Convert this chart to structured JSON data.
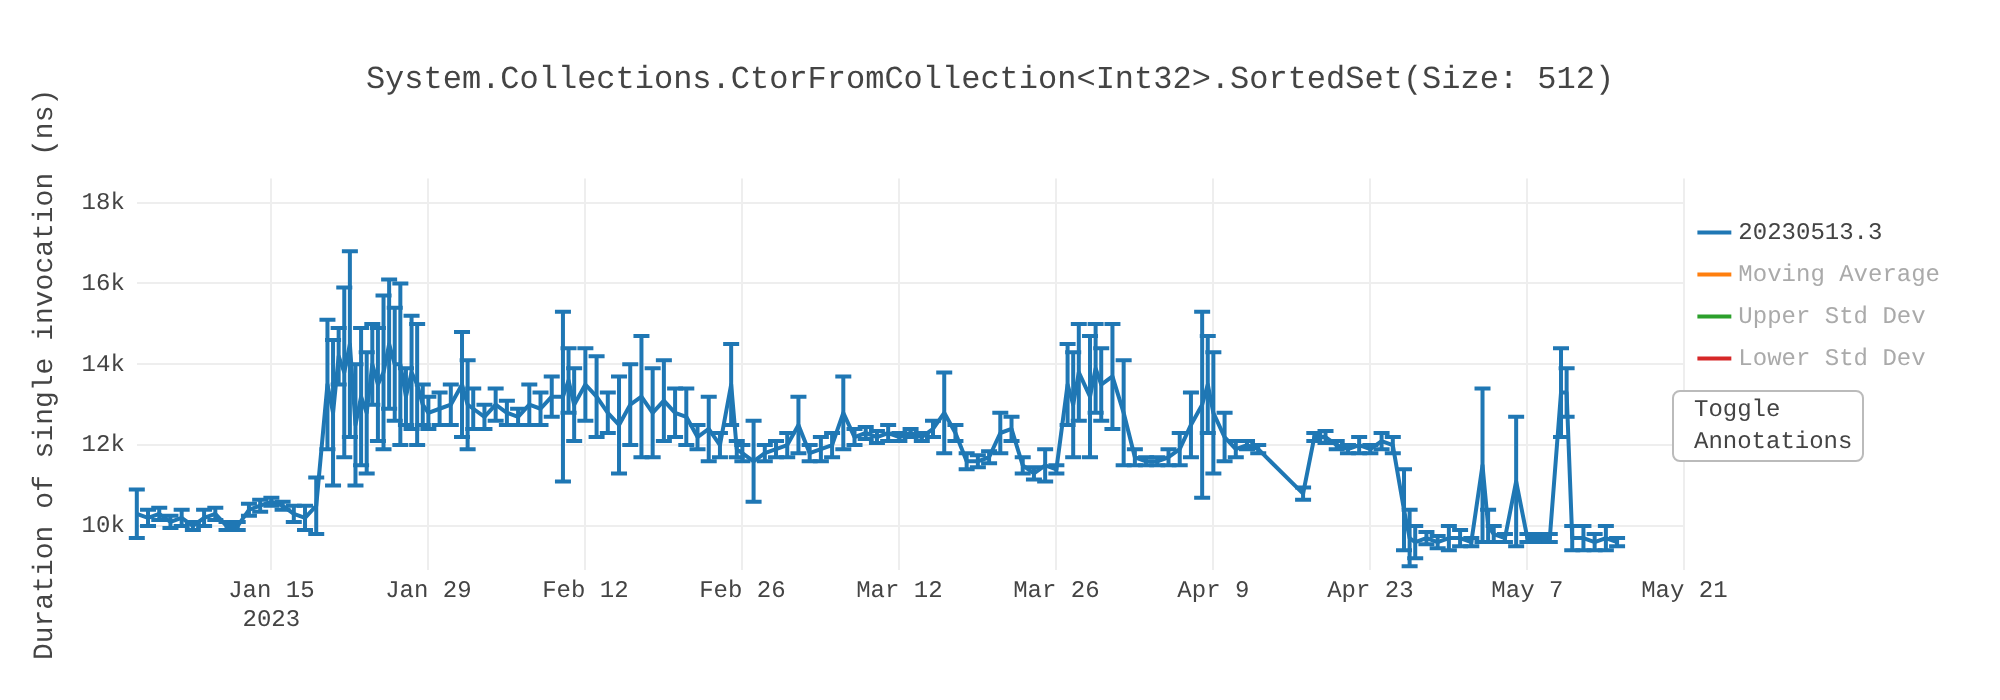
{
  "chart_data": {
    "type": "line",
    "title": "System.Collections.CtorFromCollection<Int32>.SortedSet(Size: 512)",
    "ylabel": "Duration of single invocation (ns)",
    "annotations": [
      "Toggle Annotations"
    ],
    "x": [
      "2023-01-03",
      "2023-01-04",
      "2023-01-05",
      "2023-01-06",
      "2023-01-07",
      "2023-01-08",
      "2023-01-09",
      "2023-01-10",
      "2023-01-11",
      "2023-01-12",
      "2023-01-13",
      "2023-01-14",
      "2023-01-15",
      "2023-01-16",
      "2023-01-17",
      "2023-01-18",
      "2023-01-19",
      "2023-01-20",
      "2023-01-20T12:00",
      "2023-01-21",
      "2023-01-21T12:00",
      "2023-01-22",
      "2023-01-22T12:00",
      "2023-01-23",
      "2023-01-23T12:00",
      "2023-01-24",
      "2023-01-24T12:00",
      "2023-01-25",
      "2023-01-25T12:00",
      "2023-01-26",
      "2023-01-26T12:00",
      "2023-01-27",
      "2023-01-27T12:00",
      "2023-01-28",
      "2023-01-28T12:00",
      "2023-01-29",
      "2023-01-30",
      "2023-01-31",
      "2023-02-01",
      "2023-02-01T12:00",
      "2023-02-02",
      "2023-02-03",
      "2023-02-04",
      "2023-02-05",
      "2023-02-06",
      "2023-02-07",
      "2023-02-08",
      "2023-02-09",
      "2023-02-10",
      "2023-02-10T12:00",
      "2023-02-11",
      "2023-02-12",
      "2023-02-13",
      "2023-02-14",
      "2023-02-15",
      "2023-02-16",
      "2023-02-17",
      "2023-02-18",
      "2023-02-19",
      "2023-02-20",
      "2023-02-21",
      "2023-02-22",
      "2023-02-23",
      "2023-02-24",
      "2023-02-25",
      "2023-02-25T12:00",
      "2023-02-26",
      "2023-02-27",
      "2023-02-28",
      "2023-03-01",
      "2023-03-02",
      "2023-03-03",
      "2023-03-04",
      "2023-03-05",
      "2023-03-06",
      "2023-03-07",
      "2023-03-08",
      "2023-03-09",
      "2023-03-10",
      "2023-03-11",
      "2023-03-12",
      "2023-03-13",
      "2023-03-14",
      "2023-03-15",
      "2023-03-16",
      "2023-03-17",
      "2023-03-18",
      "2023-03-19",
      "2023-03-20",
      "2023-03-21",
      "2023-03-22",
      "2023-03-23",
      "2023-03-24",
      "2023-03-25",
      "2023-03-26",
      "2023-03-27",
      "2023-03-27T12:00",
      "2023-03-28",
      "2023-03-29",
      "2023-03-29T12:00",
      "2023-03-30",
      "2023-03-31",
      "2023-04-01",
      "2023-04-02",
      "2023-04-03",
      "2023-04-04",
      "2023-04-05",
      "2023-04-06",
      "2023-04-07",
      "2023-04-08",
      "2023-04-08T12:00",
      "2023-04-09",
      "2023-04-10",
      "2023-04-11",
      "2023-04-12",
      "2023-04-13",
      "2023-04-17",
      "2023-04-18",
      "2023-04-19",
      "2023-04-20",
      "2023-04-21",
      "2023-04-22",
      "2023-04-23",
      "2023-04-24",
      "2023-04-25",
      "2023-04-26",
      "2023-04-26T12:00",
      "2023-04-27",
      "2023-04-28",
      "2023-04-29",
      "2023-04-30",
      "2023-05-01",
      "2023-05-02",
      "2023-05-03",
      "2023-05-03T12:00",
      "2023-05-04",
      "2023-05-05",
      "2023-05-06",
      "2023-05-07",
      "2023-05-08",
      "2023-05-09",
      "2023-05-10",
      "2023-05-10T12:00",
      "2023-05-11",
      "2023-05-12",
      "2023-05-13",
      "2023-05-14",
      "2023-05-15"
    ],
    "series": [
      {
        "name": "20230513.3",
        "color": "#1f77b4",
        "values": [
          10300,
          10200,
          10300,
          10100,
          10200,
          10000,
          10200,
          10300,
          10000,
          10000,
          10400,
          10500,
          10600,
          10500,
          10300,
          10200,
          10500,
          13500,
          12800,
          14200,
          13800,
          14500,
          12500,
          13200,
          12800,
          14000,
          13500,
          13800,
          14500,
          14000,
          14000,
          13200,
          13800,
          13500,
          13000,
          12800,
          12900,
          13000,
          13500,
          13000,
          12900,
          12700,
          13000,
          12800,
          12700,
          13000,
          12900,
          13200,
          13200,
          13600,
          13000,
          13500,
          13200,
          12800,
          12500,
          13000,
          13200,
          12800,
          13100,
          12800,
          12700,
          12200,
          12400,
          12000,
          13500,
          11900,
          11800,
          11600,
          11800,
          11900,
          12000,
          12500,
          11800,
          11900,
          12000,
          12800,
          12200,
          12300,
          12200,
          12300,
          12200,
          12300,
          12200,
          12400,
          12800,
          12300,
          11600,
          11600,
          11700,
          12300,
          12400,
          11500,
          11300,
          11500,
          11400,
          13500,
          13000,
          13800,
          13200,
          13900,
          13500,
          13700,
          12800,
          11700,
          11600,
          11600,
          11700,
          11900,
          12500,
          13000,
          13500,
          12800,
          12200,
          11900,
          12000,
          11900,
          10800,
          12200,
          12200,
          12000,
          11900,
          12000,
          11900,
          12100,
          12000,
          10400,
          9700,
          9600,
          9700,
          9600,
          9700,
          9700,
          9600,
          11500,
          10000,
          9800,
          9700,
          11100,
          9700,
          9700,
          9700,
          13300,
          13300,
          9700,
          9700,
          9600,
          9700,
          9600
        ],
        "errors": [
          600,
          200,
          150,
          150,
          200,
          100,
          200,
          150,
          100,
          100,
          150,
          150,
          100,
          100,
          200,
          300,
          700,
          1600,
          1800,
          700,
          2100,
          2300,
          1500,
          1700,
          1500,
          1000,
          1400,
          1900,
          1600,
          1400,
          2000,
          700,
          1400,
          1500,
          500,
          400,
          400,
          500,
          1300,
          1100,
          500,
          300,
          400,
          300,
          200,
          500,
          400,
          500,
          2100,
          800,
          900,
          900,
          1000,
          500,
          1200,
          1000,
          1500,
          1100,
          1000,
          600,
          700,
          300,
          800,
          300,
          1000,
          200,
          200,
          1000,
          200,
          200,
          300,
          700,
          200,
          300,
          300,
          900,
          200,
          150,
          150,
          200,
          100,
          100,
          100,
          200,
          1000,
          200,
          200,
          150,
          150,
          500,
          300,
          200,
          150,
          400,
          100,
          1000,
          1300,
          1200,
          1500,
          1100,
          900,
          1300,
          1300,
          200,
          100,
          100,
          200,
          400,
          800,
          2300,
          1200,
          1500,
          600,
          200,
          100,
          100,
          150,
          100,
          150,
          100,
          100,
          200,
          100,
          200,
          200,
          1000,
          700,
          400,
          150,
          150,
          300,
          200,
          100,
          1900,
          400,
          200,
          100,
          1600,
          100,
          100,
          100,
          1100,
          600,
          300,
          300,
          200,
          300,
          100
        ]
      },
      {
        "name": "Moving Average",
        "color": "#ff7f0e",
        "values": [
          null,
          null,
          null,
          null,
          null,
          null,
          null,
          null,
          null,
          null,
          null,
          null,
          null,
          null,
          null,
          null,
          null,
          null,
          null,
          null,
          null,
          null,
          null,
          null,
          null,
          null,
          null,
          null,
          null,
          null,
          null,
          null,
          null,
          null,
          null,
          null,
          null,
          null,
          null,
          null,
          null,
          null,
          null,
          null,
          null,
          null,
          null,
          null,
          null,
          null,
          null,
          null,
          null,
          null,
          null,
          null,
          null,
          null,
          null,
          null,
          null,
          null,
          null,
          null,
          null,
          null,
          null,
          null,
          null,
          null,
          null,
          null,
          null,
          null,
          null,
          null,
          null,
          null,
          null,
          null,
          null,
          null,
          null,
          null,
          null,
          null,
          null,
          null,
          null,
          null,
          null,
          null,
          null,
          null,
          null,
          null,
          null,
          null,
          null,
          null,
          null,
          null,
          null,
          null,
          null,
          null,
          null,
          null,
          null,
          null,
          null,
          null,
          null,
          null,
          null,
          null,
          null,
          null,
          null,
          null,
          null,
          null,
          null,
          null,
          null,
          null,
          null,
          null,
          null,
          null,
          null,
          null,
          null,
          null,
          null,
          null,
          null,
          null,
          null,
          null,
          null,
          null,
          null,
          null,
          null,
          null,
          null,
          null
        ]
      },
      {
        "name": "Upper Std Dev",
        "color": "#2ca02c",
        "values": [
          null,
          null,
          null,
          null,
          null,
          null,
          null,
          null,
          null,
          null,
          null,
          null,
          null,
          null,
          null,
          null,
          null,
          null,
          null,
          null,
          null,
          null,
          null,
          null,
          null,
          null,
          null,
          null,
          null,
          null,
          null,
          null,
          null,
          null,
          null,
          null,
          null,
          null,
          null,
          null,
          null,
          null,
          null,
          null,
          null,
          null,
          null,
          null,
          null,
          null,
          null,
          null,
          null,
          null,
          null,
          null,
          null,
          null,
          null,
          null,
          null,
          null,
          null,
          null,
          null,
          null,
          null,
          null,
          null,
          null,
          null,
          null,
          null,
          null,
          null,
          null,
          null,
          null,
          null,
          null,
          null,
          null,
          null,
          null,
          null,
          null,
          null,
          null,
          null,
          null,
          null,
          null,
          null,
          null,
          null,
          null,
          null,
          null,
          null,
          null,
          null,
          null,
          null,
          null,
          null,
          null,
          null,
          null,
          null,
          null,
          null,
          null,
          null,
          null,
          null,
          null,
          null,
          null,
          null,
          null,
          null,
          null,
          null,
          null,
          null,
          null,
          null,
          null,
          null,
          null,
          null,
          null,
          null,
          null,
          null,
          null,
          null,
          null,
          null,
          null,
          null,
          null,
          null,
          null,
          null,
          null,
          null,
          null
        ]
      },
      {
        "name": "Lower Std Dev",
        "color": "#d62728",
        "values": [
          null,
          null,
          null,
          null,
          null,
          null,
          null,
          null,
          null,
          null,
          null,
          null,
          null,
          null,
          null,
          null,
          null,
          null,
          null,
          null,
          null,
          null,
          null,
          null,
          null,
          null,
          null,
          null,
          null,
          null,
          null,
          null,
          null,
          null,
          null,
          null,
          null,
          null,
          null,
          null,
          null,
          null,
          null,
          null,
          null,
          null,
          null,
          null,
          null,
          null,
          null,
          null,
          null,
          null,
          null,
          null,
          null,
          null,
          null,
          null,
          null,
          null,
          null,
          null,
          null,
          null,
          null,
          null,
          null,
          null,
          null,
          null,
          null,
          null,
          null,
          null,
          null,
          null,
          null,
          null,
          null,
          null,
          null,
          null,
          null,
          null,
          null,
          null,
          null,
          null,
          null,
          null,
          null,
          null,
          null,
          null,
          null,
          null,
          null,
          null,
          null,
          null,
          null,
          null,
          null,
          null,
          null,
          null,
          null,
          null,
          null,
          null,
          null,
          null,
          null,
          null,
          null,
          null,
          null,
          null,
          null,
          null,
          null,
          null,
          null,
          null,
          null,
          null,
          null,
          null,
          null,
          null,
          null,
          null,
          null,
          null,
          null,
          null,
          null,
          null,
          null,
          null,
          null,
          null,
          null,
          null,
          null,
          null
        ]
      }
    ],
    "xlim": [
      "2023-01-03",
      "2023-05-21"
    ],
    "xticks": [
      {
        "value": "2023-01-15",
        "label": "Jan 15\n2023"
      },
      {
        "value": "2023-01-29",
        "label": "Jan 29"
      },
      {
        "value": "2023-02-12",
        "label": "Feb 12"
      },
      {
        "value": "2023-02-26",
        "label": "Feb 26"
      },
      {
        "value": "2023-03-12",
        "label": "Mar 12"
      },
      {
        "value": "2023-03-26",
        "label": "Mar 26"
      },
      {
        "value": "2023-04-09",
        "label": "Apr 9"
      },
      {
        "value": "2023-04-23",
        "label": "Apr 23"
      },
      {
        "value": "2023-05-07",
        "label": "May 7"
      },
      {
        "value": "2023-05-21",
        "label": "May 21"
      }
    ],
    "ylim": [
      8900,
      18600
    ],
    "yticks": [
      {
        "value": 10000,
        "label": "10k"
      },
      {
        "value": 12000,
        "label": "12k"
      },
      {
        "value": 14000,
        "label": "14k"
      },
      {
        "value": 16000,
        "label": "16k"
      },
      {
        "value": 18000,
        "label": "18k"
      }
    ],
    "grid": true,
    "legend": "top right",
    "marker": "none",
    "line_style": "solid"
  }
}
